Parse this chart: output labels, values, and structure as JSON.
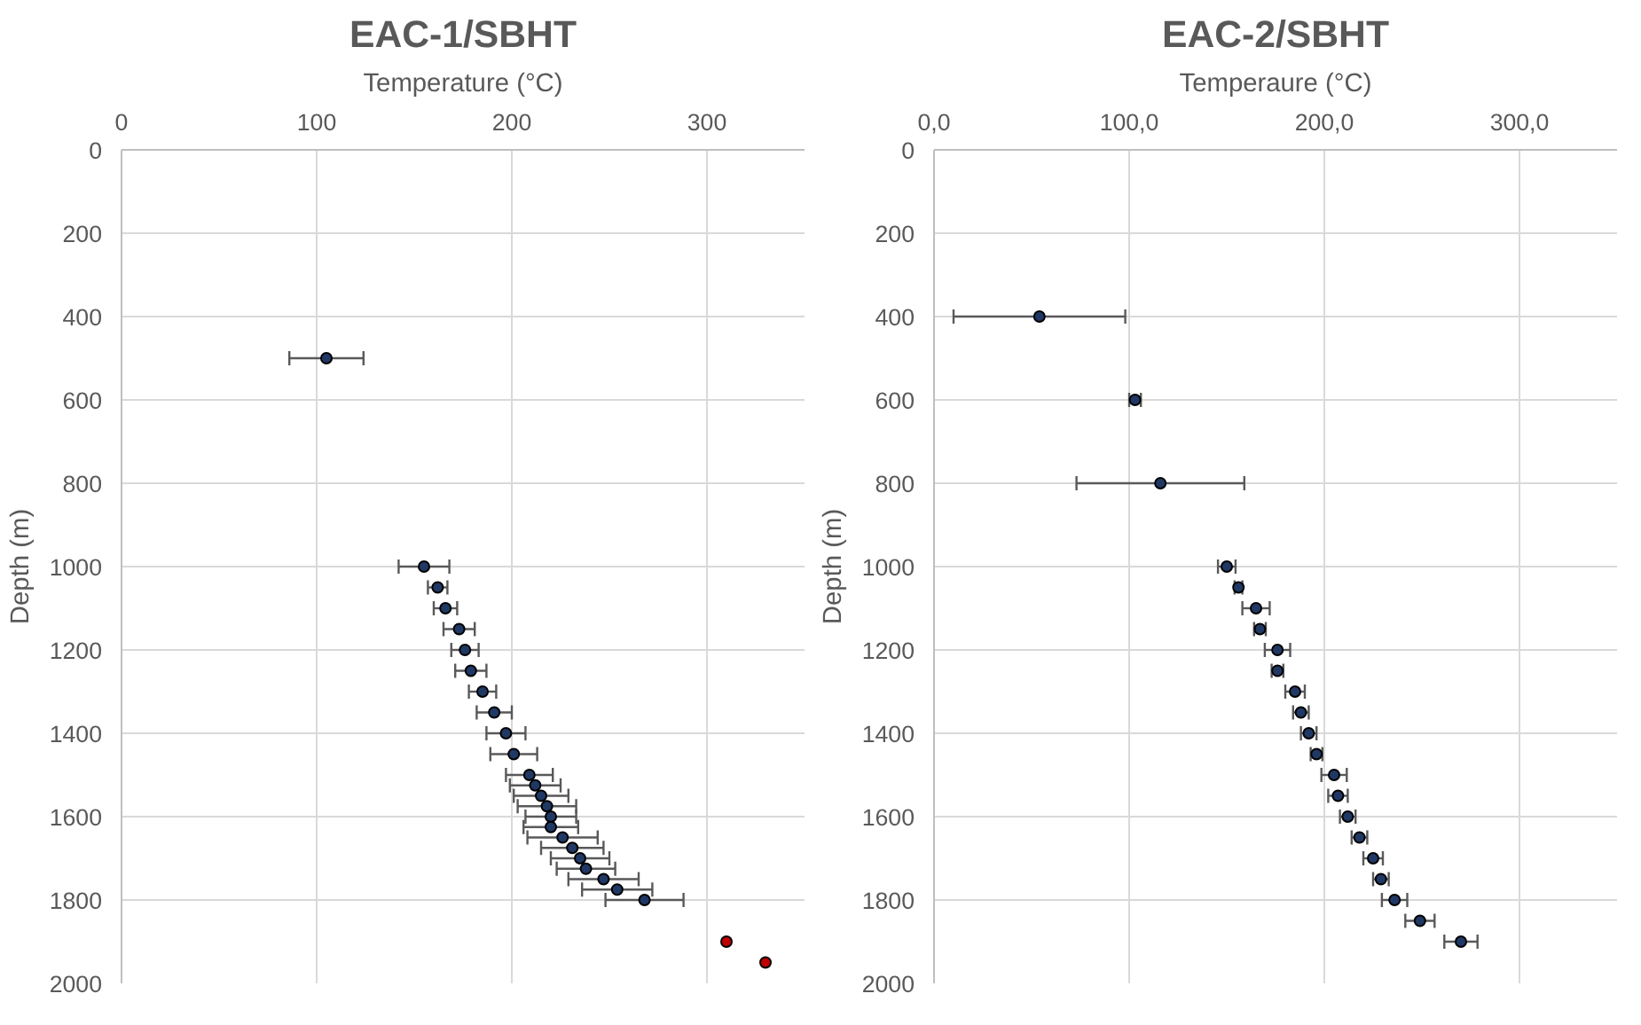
{
  "chart_data": [
    {
      "type": "scatter",
      "title": "EAC-1/SBHT",
      "xlabel": "Temperature (°C)",
      "ylabel": "Depth (m)",
      "xlim": [
        0,
        350
      ],
      "xticks": [
        0,
        100,
        200,
        300
      ],
      "ylim": [
        2000,
        0
      ],
      "yticks": [
        0,
        200,
        400,
        600,
        800,
        1000,
        1200,
        1400,
        1600,
        1800,
        2000
      ],
      "grid": true,
      "marker": "circle",
      "series": [
        {
          "color": "#203864",
          "x": [
            105,
            155,
            162,
            166,
            173,
            176,
            179,
            185,
            191,
            197,
            201,
            209,
            212,
            215,
            218,
            220,
            220,
            226,
            231,
            235,
            238,
            247,
            254,
            268
          ],
          "values": [
            500,
            1000,
            1050,
            1100,
            1150,
            1200,
            1250,
            1300,
            1350,
            1400,
            1450,
            1500,
            1525,
            1550,
            1575,
            1600,
            1625,
            1650,
            1675,
            1700,
            1725,
            1750,
            1775,
            1800
          ],
          "xerrors": [
            19,
            13,
            5,
            6,
            8,
            7,
            8,
            7,
            9,
            10,
            12,
            12,
            13,
            14,
            15,
            13,
            14,
            18,
            16,
            15,
            15,
            18,
            18,
            20
          ]
        },
        {
          "color": "#c00000",
          "x": [
            310,
            330
          ],
          "values": [
            1900,
            1950
          ]
        }
      ]
    },
    {
      "type": "scatter",
      "title": "EAC-2/SBHT",
      "xlabel": "Temperaure (°C)",
      "ylabel": "Depth (m)",
      "xlim": [
        0,
        350
      ],
      "xticks": [
        {
          "value": 0,
          "label": "0,0"
        },
        {
          "value": 100,
          "label": "100,0"
        },
        {
          "value": 200,
          "label": "200,0"
        },
        {
          "value": 300,
          "label": "300,0"
        }
      ],
      "ylim": [
        2000,
        0
      ],
      "yticks": [
        0,
        200,
        400,
        600,
        800,
        1000,
        1200,
        1400,
        1600,
        1800,
        2000
      ],
      "grid": true,
      "marker": "circle",
      "series": [
        {
          "color": "#203864",
          "x": [
            54,
            103,
            116,
            150,
            156,
            165,
            167,
            176,
            176,
            185,
            188,
            192,
            196,
            205,
            207,
            212,
            218,
            225,
            229,
            236,
            249,
            270
          ],
          "values": [
            400,
            600,
            800,
            1000,
            1050,
            1100,
            1150,
            1200,
            1250,
            1300,
            1350,
            1400,
            1450,
            1500,
            1550,
            1600,
            1650,
            1700,
            1750,
            1800,
            1850,
            1900
          ],
          "xerrors": [
            44,
            3,
            43,
            4.5,
            2,
            7,
            3,
            6.5,
            3,
            5,
            4,
            4,
            3,
            6.5,
            5,
            4,
            4,
            5,
            4,
            6.5,
            7.5,
            8.5
          ]
        }
      ]
    }
  ]
}
